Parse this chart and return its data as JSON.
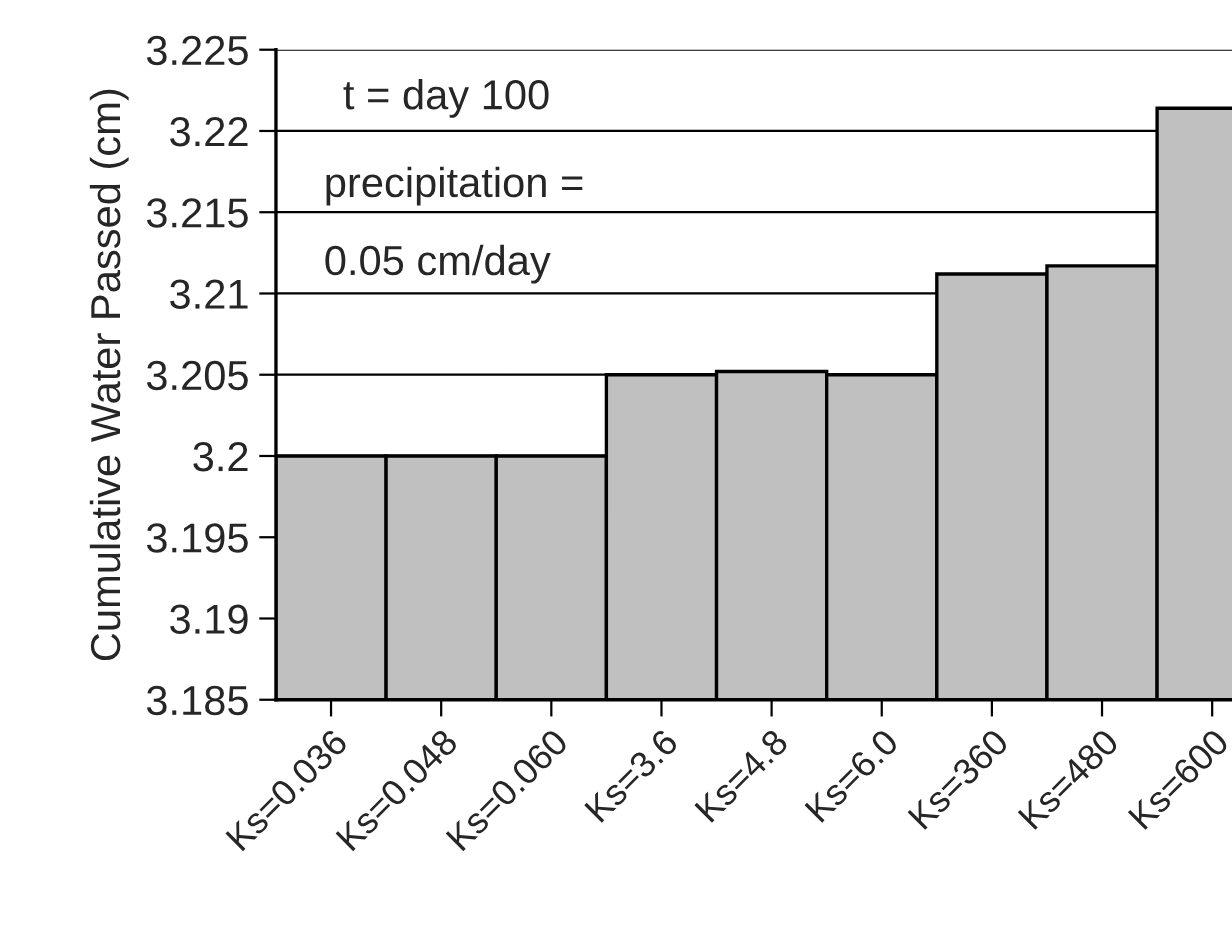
{
  "chart_data": {
    "type": "bar",
    "ylabel": "Cumulative Water Passed (cm)",
    "categories": [
      "Ks=0.036",
      "Ks=0.048",
      "Ks=0.060",
      "Ks=3.6",
      "Ks=4.8",
      "Ks=6.0",
      "Ks=360",
      "Ks=480",
      "Ks=600"
    ],
    "values": [
      3.2,
      3.2,
      3.2,
      3.205,
      3.2052,
      3.205,
      3.2112,
      3.2117,
      3.2214
    ],
    "color": "#c0c0c0",
    "ylim": [
      3.185,
      3.225
    ],
    "yticks": [
      3.185,
      3.19,
      3.195,
      3.2,
      3.205,
      3.21,
      3.215,
      3.22,
      3.225
    ],
    "grid": "y",
    "annotations": [
      "t = day 100",
      "precipitation =",
      "0.05 cm/day"
    ]
  }
}
